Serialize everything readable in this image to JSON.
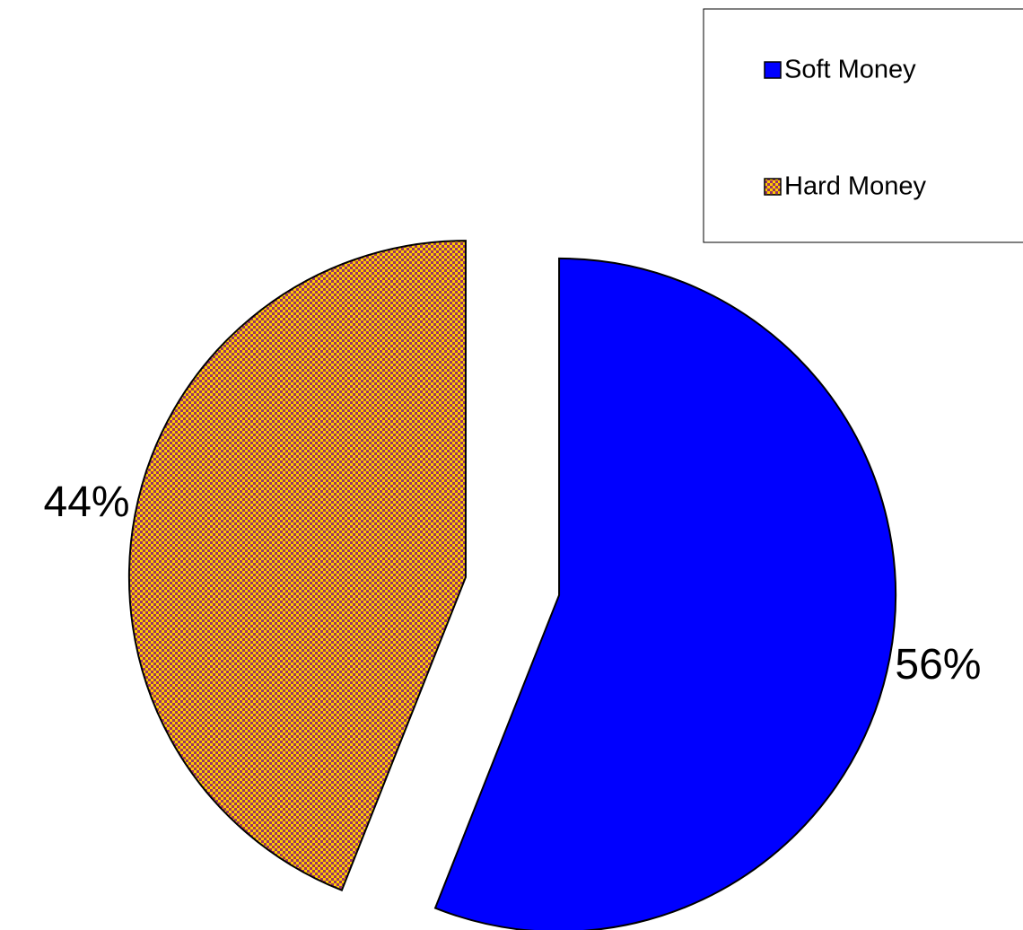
{
  "chart_data": {
    "type": "pie",
    "categories": [
      "Soft Money",
      "Hard Money"
    ],
    "values": [
      56,
      44
    ],
    "value_labels": [
      "56%",
      "44%"
    ],
    "colors": [
      "#0000ff",
      "#ffcc00"
    ],
    "patterns": [
      "solid",
      "checker"
    ],
    "pattern_color": "#993366",
    "legend": "top-right"
  }
}
